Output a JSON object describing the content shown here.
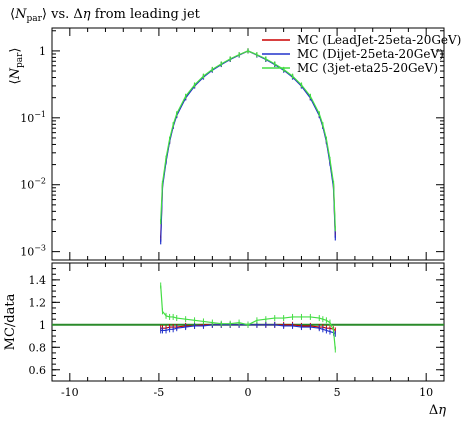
{
  "chart_data": {
    "type": "line",
    "title": "⟨N_par⟩ vs. Δη from leading jet",
    "title_parts": {
      "prefix": "⟨",
      "symbol": "N",
      "subscript": "par",
      "suffix": "⟩ vs. Δ",
      "eta": "η",
      "rest": " from leading jet"
    },
    "main_panel": {
      "ylabel": "⟨N_par⟩",
      "ylabel_parts": {
        "prefix": "⟨",
        "symbol": "N",
        "subscript": "par",
        "suffix": "⟩"
      },
      "yscale": "log",
      "ylim": [
        0.00075,
        2.2
      ],
      "yticks": [
        {
          "value": 1,
          "label": "1"
        },
        {
          "value": 0.1,
          "label": "10⁻¹",
          "base": "10",
          "exp": "−1"
        },
        {
          "value": 0.01,
          "label": "10⁻²",
          "base": "10",
          "exp": "−2"
        },
        {
          "value": 0.001,
          "label": "10⁻³",
          "base": "10",
          "exp": "−3"
        }
      ]
    },
    "ratio_panel": {
      "ylabel": "MC/data",
      "ylim": [
        0.5,
        1.55
      ],
      "yticks": [
        {
          "value": 0.6,
          "label": "0.6"
        },
        {
          "value": 0.8,
          "label": "0.8"
        },
        {
          "value": 1.0,
          "label": "1"
        },
        {
          "value": 1.2,
          "label": "1.2"
        },
        {
          "value": 1.4,
          "label": "1.4"
        }
      ]
    },
    "xlabel": "Δη",
    "xlim": [
      -11,
      11
    ],
    "xticks": [
      {
        "value": -10,
        "label": "-10"
      },
      {
        "value": -5,
        "label": "-5"
      },
      {
        "value": 0,
        "label": "0"
      },
      {
        "value": 5,
        "label": "5"
      },
      {
        "value": 10,
        "label": "10"
      }
    ],
    "legend_position": "top-right",
    "series": [
      {
        "name": "MC (LeadJet-25eta-20GeV)",
        "color": "#cc0000",
        "x": [
          -4.9,
          -4.8,
          -4.6,
          -4.4,
          -4.2,
          -4.0,
          -3.5,
          -3.0,
          -2.5,
          -2.0,
          -1.5,
          -1.0,
          -0.5,
          0.0,
          0.5,
          1.0,
          1.5,
          2.0,
          2.5,
          3.0,
          3.5,
          4.0,
          4.2,
          4.4,
          4.6,
          4.8,
          4.9
        ],
        "y": [
          0.0016,
          0.0098,
          0.023,
          0.045,
          0.075,
          0.11,
          0.2,
          0.3,
          0.41,
          0.52,
          0.63,
          0.75,
          0.87,
          1.0,
          0.87,
          0.75,
          0.63,
          0.52,
          0.41,
          0.3,
          0.2,
          0.11,
          0.075,
          0.045,
          0.022,
          0.0095,
          0.0018
        ],
        "ratio": [
          0.97,
          0.97,
          0.97,
          0.98,
          0.98,
          0.98,
          0.99,
          0.99,
          1.0,
          1.0,
          1.0,
          1.0,
          1.0,
          1.0,
          1.0,
          1.0,
          1.0,
          1.0,
          1.0,
          0.99,
          0.99,
          0.98,
          0.98,
          0.97,
          0.97,
          0.96,
          0.95
        ]
      },
      {
        "name": "MC (Dijet-25eta-20GeV)",
        "color": "#2233cc",
        "x": [
          -4.9,
          -4.8,
          -4.6,
          -4.4,
          -4.2,
          -4.0,
          -3.5,
          -3.0,
          -2.5,
          -2.0,
          -1.5,
          -1.0,
          -0.5,
          0.0,
          0.5,
          1.0,
          1.5,
          2.0,
          2.5,
          3.0,
          3.5,
          4.0,
          4.2,
          4.4,
          4.6,
          4.8,
          4.9
        ],
        "y": [
          0.0014,
          0.0092,
          0.022,
          0.044,
          0.074,
          0.108,
          0.198,
          0.298,
          0.405,
          0.515,
          0.625,
          0.745,
          0.865,
          1.0,
          0.865,
          0.745,
          0.625,
          0.515,
          0.405,
          0.298,
          0.198,
          0.108,
          0.074,
          0.044,
          0.021,
          0.009,
          0.0016
        ],
        "ratio": [
          0.95,
          0.95,
          0.95,
          0.96,
          0.96,
          0.97,
          0.98,
          0.99,
          0.99,
          1.0,
          1.0,
          1.0,
          1.0,
          1.0,
          1.0,
          1.0,
          1.0,
          0.99,
          0.99,
          0.98,
          0.98,
          0.97,
          0.96,
          0.95,
          0.94,
          0.93,
          0.92
        ]
      },
      {
        "name": "MC (3jet-eta25-20GeV)",
        "color": "#44dd44",
        "x": [
          -4.9,
          -4.8,
          -4.6,
          -4.4,
          -4.2,
          -4.0,
          -3.5,
          -3.0,
          -2.5,
          -2.0,
          -1.5,
          -1.0,
          -0.5,
          0.0,
          0.5,
          1.0,
          1.5,
          2.0,
          2.5,
          3.0,
          3.5,
          4.0,
          4.2,
          4.4,
          4.6,
          4.8,
          4.9
        ],
        "y": [
          0.0028,
          0.0105,
          0.025,
          0.048,
          0.079,
          0.115,
          0.21,
          0.31,
          0.42,
          0.53,
          0.64,
          0.76,
          0.88,
          1.0,
          0.88,
          0.76,
          0.64,
          0.53,
          0.42,
          0.31,
          0.21,
          0.115,
          0.079,
          0.048,
          0.024,
          0.0105,
          0.0022
        ],
        "ratio": [
          1.35,
          1.12,
          1.08,
          1.07,
          1.07,
          1.06,
          1.05,
          1.04,
          1.03,
          1.02,
          1.01,
          1.01,
          1.02,
          1.0,
          1.04,
          1.05,
          1.06,
          1.06,
          1.07,
          1.07,
          1.07,
          1.06,
          1.05,
          1.04,
          1.02,
          0.95,
          0.78
        ]
      }
    ]
  }
}
